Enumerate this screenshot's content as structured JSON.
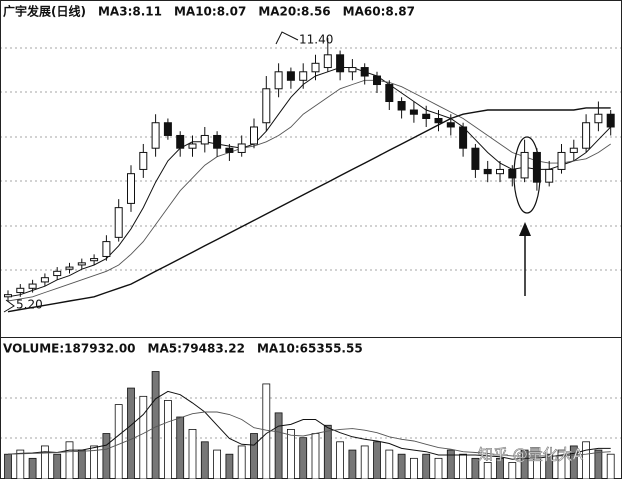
{
  "chart_data": [
    {
      "type": "candlestick",
      "header": [
        "广宇发展(日线)",
        "MA3:8.11",
        "MA10:8.07",
        "MA20:8.56",
        "MA60:8.87"
      ],
      "open": [
        5.3,
        5.4,
        5.5,
        5.65,
        5.8,
        5.95,
        6.05,
        6.15,
        6.25,
        6.7,
        7.5,
        8.3,
        8.8,
        9.4,
        9.1,
        8.8,
        8.9,
        9.1,
        8.8,
        8.7,
        8.9,
        9.4,
        10.2,
        10.6,
        10.4,
        10.6,
        10.7,
        11.0,
        10.6,
        10.7,
        10.5,
        10.3,
        9.9,
        9.7,
        9.6,
        9.5,
        9.4,
        9.3,
        8.8,
        8.3,
        8.2,
        8.3,
        8.1,
        8.7,
        8.0,
        8.3,
        8.7,
        8.8,
        9.4,
        9.6
      ],
      "high": [
        5.45,
        5.6,
        5.7,
        5.85,
        6.0,
        6.1,
        6.2,
        6.3,
        6.75,
        7.6,
        8.4,
        8.9,
        9.6,
        9.5,
        9.2,
        9.1,
        9.3,
        9.2,
        8.9,
        9.1,
        9.5,
        10.5,
        10.8,
        10.7,
        10.8,
        11.0,
        11.4,
        11.1,
        10.9,
        10.8,
        10.6,
        10.4,
        10.0,
        9.9,
        9.8,
        9.7,
        9.6,
        9.4,
        8.9,
        8.5,
        8.5,
        8.4,
        9.0,
        8.8,
        8.5,
        8.9,
        9.0,
        9.6,
        9.9,
        9.7
      ],
      "low": [
        5.2,
        5.3,
        5.4,
        5.55,
        5.7,
        5.85,
        5.95,
        6.05,
        6.15,
        6.6,
        7.3,
        8.1,
        8.6,
        9.0,
        8.6,
        8.6,
        8.7,
        8.6,
        8.5,
        8.6,
        8.8,
        9.2,
        10.0,
        10.2,
        10.2,
        10.4,
        10.6,
        10.4,
        10.4,
        10.3,
        10.1,
        9.7,
        9.5,
        9.4,
        9.3,
        9.2,
        9.1,
        8.6,
        8.1,
        8.0,
        8.0,
        7.9,
        8.0,
        7.8,
        7.9,
        8.2,
        8.5,
        8.7,
        9.2,
        9.1
      ],
      "close": [
        5.35,
        5.5,
        5.6,
        5.75,
        5.9,
        6.0,
        6.1,
        6.2,
        6.6,
        7.4,
        8.2,
        8.7,
        9.4,
        9.1,
        8.8,
        8.9,
        9.1,
        8.8,
        8.7,
        8.9,
        9.3,
        10.2,
        10.6,
        10.4,
        10.6,
        10.8,
        11.0,
        10.6,
        10.7,
        10.5,
        10.3,
        9.9,
        9.7,
        9.6,
        9.5,
        9.4,
        9.3,
        8.8,
        8.3,
        8.2,
        8.3,
        8.1,
        8.7,
        8.0,
        8.3,
        8.7,
        8.8,
        9.4,
        9.6,
        9.3
      ],
      "ma_lines": [
        {
          "values": [
            5.3,
            5.35,
            5.45,
            5.55,
            5.7,
            5.8,
            5.95,
            6.05,
            6.2,
            6.5,
            6.9,
            7.4,
            8.0,
            8.5,
            8.8,
            8.95,
            8.95,
            8.9,
            8.85,
            8.8,
            8.9,
            9.2,
            9.6,
            10.0,
            10.3,
            10.5,
            10.6,
            10.7,
            10.7,
            10.6,
            10.5,
            10.3,
            10.1,
            9.9,
            9.7,
            9.6,
            9.5,
            9.3,
            9.0,
            8.7,
            8.45,
            8.3,
            8.35,
            8.3,
            8.3,
            8.4,
            8.5,
            8.7,
            9.0,
            9.3
          ]
        },
        {
          "values": [
            5.2,
            5.25,
            5.3,
            5.4,
            5.5,
            5.6,
            5.7,
            5.8,
            5.9,
            6.05,
            6.3,
            6.6,
            7.0,
            7.4,
            7.8,
            8.1,
            8.4,
            8.6,
            8.7,
            8.8,
            8.85,
            8.95,
            9.1,
            9.3,
            9.6,
            9.8,
            10.0,
            10.2,
            10.3,
            10.4,
            10.4,
            10.35,
            10.25,
            10.1,
            9.95,
            9.8,
            9.65,
            9.5,
            9.3,
            9.1,
            8.9,
            8.7,
            8.6,
            8.5,
            8.45,
            8.45,
            8.5,
            8.55,
            8.7,
            8.9
          ]
        },
        {
          "values": [
            4.95,
            5.0,
            5.05,
            5.1,
            5.15,
            5.2,
            5.25,
            5.3,
            5.4,
            5.5,
            5.6,
            5.75,
            5.9,
            6.05,
            6.2,
            6.35,
            6.5,
            6.65,
            6.8,
            6.95,
            7.1,
            7.25,
            7.4,
            7.55,
            7.7,
            7.85,
            8.0,
            8.15,
            8.3,
            8.45,
            8.6,
            8.75,
            8.9,
            9.05,
            9.2,
            9.35,
            9.5,
            9.6,
            9.65,
            9.7,
            9.7,
            9.7,
            9.7,
            9.7,
            9.7,
            9.7,
            9.7,
            9.75,
            9.75,
            9.75
          ]
        }
      ],
      "peak_label": "11.40",
      "low_label": "5.20",
      "ylim": [
        4.4,
        11.82
      ]
    },
    {
      "type": "bar",
      "header": [
        "VOLUME:187932.00",
        "MA5:79483.22",
        "MA10:65355.55"
      ],
      "values": [
        60000,
        70000,
        50000,
        80000,
        60000,
        90000,
        70000,
        80000,
        110000,
        180000,
        220000,
        200000,
        260000,
        190000,
        150000,
        120000,
        90000,
        70000,
        60000,
        80000,
        110000,
        230000,
        160000,
        120000,
        100000,
        110000,
        130000,
        90000,
        70000,
        80000,
        90000,
        70000,
        60000,
        50000,
        60000,
        50000,
        70000,
        60000,
        50000,
        40000,
        50000,
        40000,
        70000,
        50000,
        60000,
        70000,
        80000,
        90000,
        70000,
        60000
      ],
      "ma_lines": [
        {
          "values": [
            60000,
            62000,
            63000,
            66000,
            64000,
            70000,
            70000,
            76000,
            82000,
            106000,
            130000,
            156000,
            194000,
            212000,
            204000,
            184000,
            162000,
            130000,
            98000,
            84000,
            82000,
            110000,
            128000,
            132000,
            144000,
            144000,
            124000,
            112000,
            102000,
            96000,
            92000,
            86000,
            74000,
            70000,
            66000,
            58000,
            58000,
            58000,
            58000,
            56000,
            54000,
            48000,
            50000,
            50000,
            54000,
            58000,
            62000,
            70000,
            74000,
            74000
          ]
        },
        {
          "values": [
            60000,
            61000,
            62000,
            63000,
            64000,
            66000,
            67000,
            69000,
            72000,
            84000,
            96000,
            110000,
            126000,
            138000,
            148000,
            158000,
            162000,
            162000,
            156000,
            144000,
            124000,
            118000,
            114000,
            106000,
            104000,
            110000,
            116000,
            120000,
            122000,
            118000,
            112000,
            102000,
            96000,
            92000,
            84000,
            76000,
            72000,
            66000,
            64000,
            62000,
            58000,
            56000,
            56000,
            56000,
            56000,
            56000,
            58000,
            60000,
            64000,
            66000
          ]
        }
      ],
      "ylim": [
        0,
        300000
      ]
    }
  ],
  "watermark": "知乎 @量化大A"
}
